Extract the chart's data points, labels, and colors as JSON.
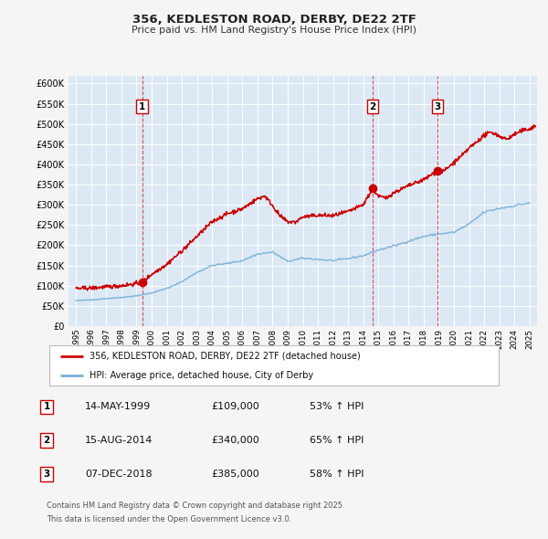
{
  "title": "356, KEDLESTON ROAD, DERBY, DE22 2TF",
  "subtitle": "Price paid vs. HM Land Registry's House Price Index (HPI)",
  "legend_line1": "356, KEDLESTON ROAD, DERBY, DE22 2TF (detached house)",
  "legend_line2": "HPI: Average price, detached house, City of Derby",
  "sale_color": "#cc0000",
  "hpi_color": "#7aafd4",
  "fig_bg_color": "#f5f5f5",
  "plot_bg_color": "#dce9f5",
  "grid_color": "#ffffff",
  "sale_points": [
    {
      "year": 1999.37,
      "price": 109000,
      "label": "1"
    },
    {
      "year": 2014.62,
      "price": 340000,
      "label": "2"
    },
    {
      "year": 2018.92,
      "price": 385000,
      "label": "3"
    }
  ],
  "vline_years": [
    1999.37,
    2014.62,
    2018.92
  ],
  "table_rows": [
    {
      "num": "1",
      "date": "14-MAY-1999",
      "price": "£109,000",
      "pct": "53% ↑ HPI"
    },
    {
      "num": "2",
      "date": "15-AUG-2014",
      "price": "£340,000",
      "pct": "65% ↑ HPI"
    },
    {
      "num": "3",
      "date": "07-DEC-2018",
      "price": "£385,000",
      "pct": "58% ↑ HPI"
    }
  ],
  "footer_line1": "Contains HM Land Registry data © Crown copyright and database right 2025.",
  "footer_line2": "This data is licensed under the Open Government Licence v3.0.",
  "ylim": [
    0,
    620000
  ],
  "xlim": [
    1994.5,
    2025.5
  ],
  "yticks": [
    0,
    50000,
    100000,
    150000,
    200000,
    250000,
    300000,
    350000,
    400000,
    450000,
    500000,
    550000,
    600000
  ],
  "ytick_labels": [
    "£0",
    "£50K",
    "£100K",
    "£150K",
    "£200K",
    "£250K",
    "£300K",
    "£350K",
    "£400K",
    "£450K",
    "£500K",
    "£550K",
    "£600K"
  ],
  "hpi_anchors_x": [
    1995,
    1996,
    1997,
    1998,
    1999,
    2000,
    2001,
    2002,
    2003,
    2004,
    2005,
    2006,
    2007,
    2008,
    2009,
    2010,
    2011,
    2012,
    2013,
    2014,
    2015,
    2016,
    2017,
    2018,
    2019,
    2020,
    2021,
    2022,
    2023,
    2024,
    2025
  ],
  "hpi_anchors_y": [
    63000,
    65000,
    68000,
    71000,
    75000,
    82000,
    93000,
    110000,
    133000,
    150000,
    155000,
    162000,
    178000,
    183000,
    160000,
    168000,
    165000,
    162000,
    167000,
    174000,
    188000,
    198000,
    210000,
    222000,
    228000,
    232000,
    252000,
    282000,
    291000,
    298000,
    305000
  ],
  "prop_anchors_x": [
    1995.0,
    1996.0,
    1997.0,
    1998.0,
    1999.0,
    1999.37,
    2000.0,
    2001.0,
    2002.0,
    2003.0,
    2004.0,
    2005.0,
    2006.0,
    2007.0,
    2007.5,
    2008.0,
    2008.5,
    2009.0,
    2009.5,
    2010.0,
    2011.0,
    2012.0,
    2013.0,
    2014.0,
    2014.62,
    2015.0,
    2015.5,
    2016.0,
    2017.0,
    2018.0,
    2018.92,
    2019.0,
    2019.5,
    2020.0,
    2020.5,
    2021.0,
    2021.5,
    2022.0,
    2022.5,
    2023.0,
    2023.5,
    2024.0,
    2024.5,
    2025.0,
    2025.4
  ],
  "prop_anchors_y": [
    93000,
    94000,
    97000,
    100000,
    105000,
    109000,
    128000,
    153000,
    186000,
    222000,
    258000,
    278000,
    290000,
    315000,
    322000,
    298000,
    272000,
    258000,
    257000,
    270000,
    274000,
    273000,
    283000,
    300000,
    340000,
    322000,
    316000,
    330000,
    347000,
    362000,
    385000,
    378000,
    388000,
    405000,
    420000,
    440000,
    455000,
    472000,
    480000,
    470000,
    462000,
    474000,
    483000,
    488000,
    495000
  ]
}
